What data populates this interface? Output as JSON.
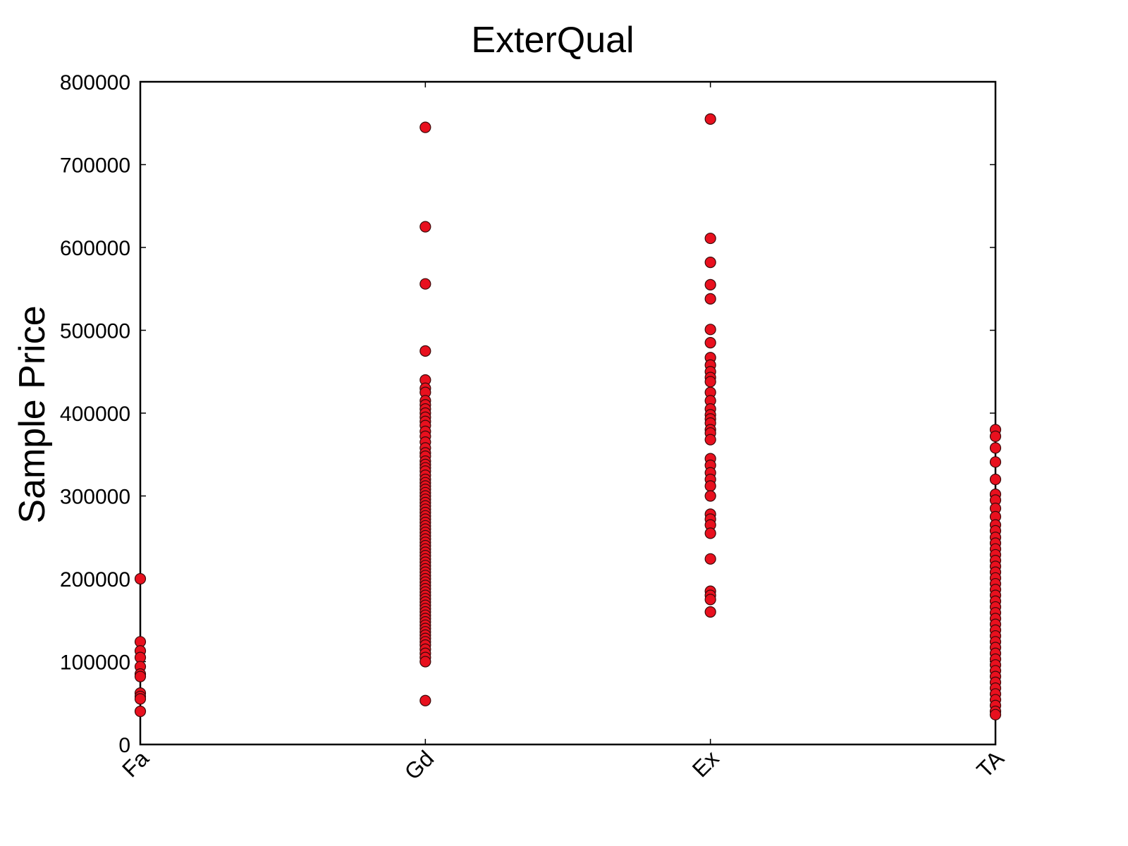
{
  "chart_data": {
    "type": "scatter",
    "title": "ExterQual",
    "xlabel": "",
    "ylabel": "Sample Price",
    "categories": [
      "Fa",
      "Gd",
      "Ex",
      "TA"
    ],
    "ylim": [
      0,
      800000
    ],
    "yticks": [
      "0",
      "100000",
      "200000",
      "300000",
      "400000",
      "500000",
      "600000",
      "700000",
      "800000"
    ],
    "grid": false,
    "marker_color": "#e8101e",
    "series": [
      {
        "category": "Fa",
        "values": [
          200000,
          124000,
          113000,
          105000,
          94000,
          85000,
          82000,
          62000,
          58000,
          55000,
          40000
        ]
      },
      {
        "category": "Gd",
        "values": [
          745000,
          625000,
          556000,
          475000,
          440000,
          430000,
          425000,
          415000,
          410000,
          405000,
          400000,
          395000,
          390000,
          385000,
          378000,
          372000,
          365000,
          358000,
          352000,
          348000,
          342000,
          338000,
          334000,
          330000,
          325000,
          320000,
          316000,
          312000,
          308000,
          304000,
          300000,
          296000,
          292000,
          288000,
          284000,
          280000,
          276000,
          272000,
          268000,
          264000,
          260000,
          256000,
          252000,
          248000,
          244000,
          240000,
          236000,
          232000,
          228000,
          224000,
          220000,
          216000,
          212000,
          208000,
          204000,
          200000,
          196000,
          192000,
          188000,
          184000,
          180000,
          176000,
          172000,
          168000,
          164000,
          160000,
          156000,
          152000,
          148000,
          144000,
          140000,
          136000,
          132000,
          128000,
          124000,
          120000,
          115000,
          110000,
          105000,
          100000,
          53000
        ]
      },
      {
        "category": "Ex",
        "values": [
          755000,
          611000,
          582000,
          555000,
          538000,
          501000,
          485000,
          467000,
          458000,
          450000,
          443000,
          438000,
          425000,
          415000,
          405000,
          398000,
          393000,
          388000,
          380000,
          376000,
          368000,
          345000,
          337000,
          328000,
          320000,
          312000,
          300000,
          278000,
          272000,
          265000,
          255000,
          224000,
          185000,
          180000,
          175000,
          160000
        ]
      },
      {
        "category": "TA",
        "values": [
          380000,
          372000,
          358000,
          341000,
          320000,
          302000,
          295000,
          285000,
          275000,
          265000,
          258000,
          250000,
          243000,
          236000,
          229000,
          222000,
          215000,
          208000,
          201000,
          194000,
          187000,
          180000,
          173000,
          166000,
          159000,
          152000,
          145000,
          138000,
          131000,
          124000,
          117000,
          110000,
          103000,
          96000,
          89000,
          82000,
          75000,
          68000,
          61000,
          54000,
          47000,
          40000,
          36000
        ]
      }
    ]
  }
}
